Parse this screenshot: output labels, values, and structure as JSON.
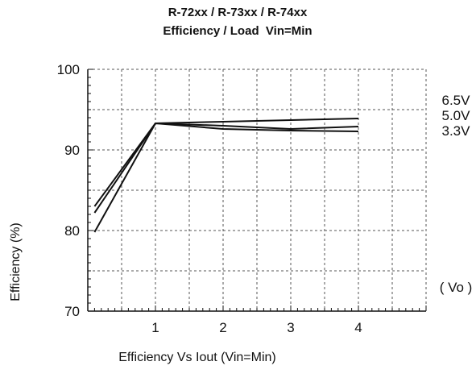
{
  "chart_data": {
    "type": "line",
    "title": "R-72xx / R-73xx / R-74xx",
    "subtitle": "Efficiency / Load  Vin=Min",
    "xlabel": "Efficiency Vs Iout (Vin=Min)",
    "ylabel": "Efficiency (%)",
    "xlim": [
      0,
      5
    ],
    "ylim": [
      70,
      100
    ],
    "x_ticks": [
      1,
      2,
      3,
      4
    ],
    "x_tick_labels": [
      "1",
      "2",
      "3",
      "4"
    ],
    "y_ticks": [
      70,
      80,
      90,
      100
    ],
    "y_tick_labels": [
      "70",
      "80",
      "90",
      "100"
    ],
    "grid": true,
    "grid_style": "dashed",
    "legend_placement": "right",
    "legend_title": "( Vo )",
    "line_color": "#111111",
    "series": [
      {
        "name": "6.5V",
        "x": [
          0.1,
          1,
          2,
          3,
          4
        ],
        "y": [
          83.0,
          93.3,
          93.5,
          93.7,
          93.9
        ]
      },
      {
        "name": "5.0V",
        "x": [
          0.1,
          1,
          2,
          3,
          4
        ],
        "y": [
          82.2,
          93.3,
          93.0,
          92.6,
          92.9
        ]
      },
      {
        "name": "3.3V",
        "x": [
          0.1,
          1,
          2,
          3,
          4
        ],
        "y": [
          79.8,
          93.3,
          92.6,
          92.4,
          92.3
        ]
      }
    ]
  }
}
